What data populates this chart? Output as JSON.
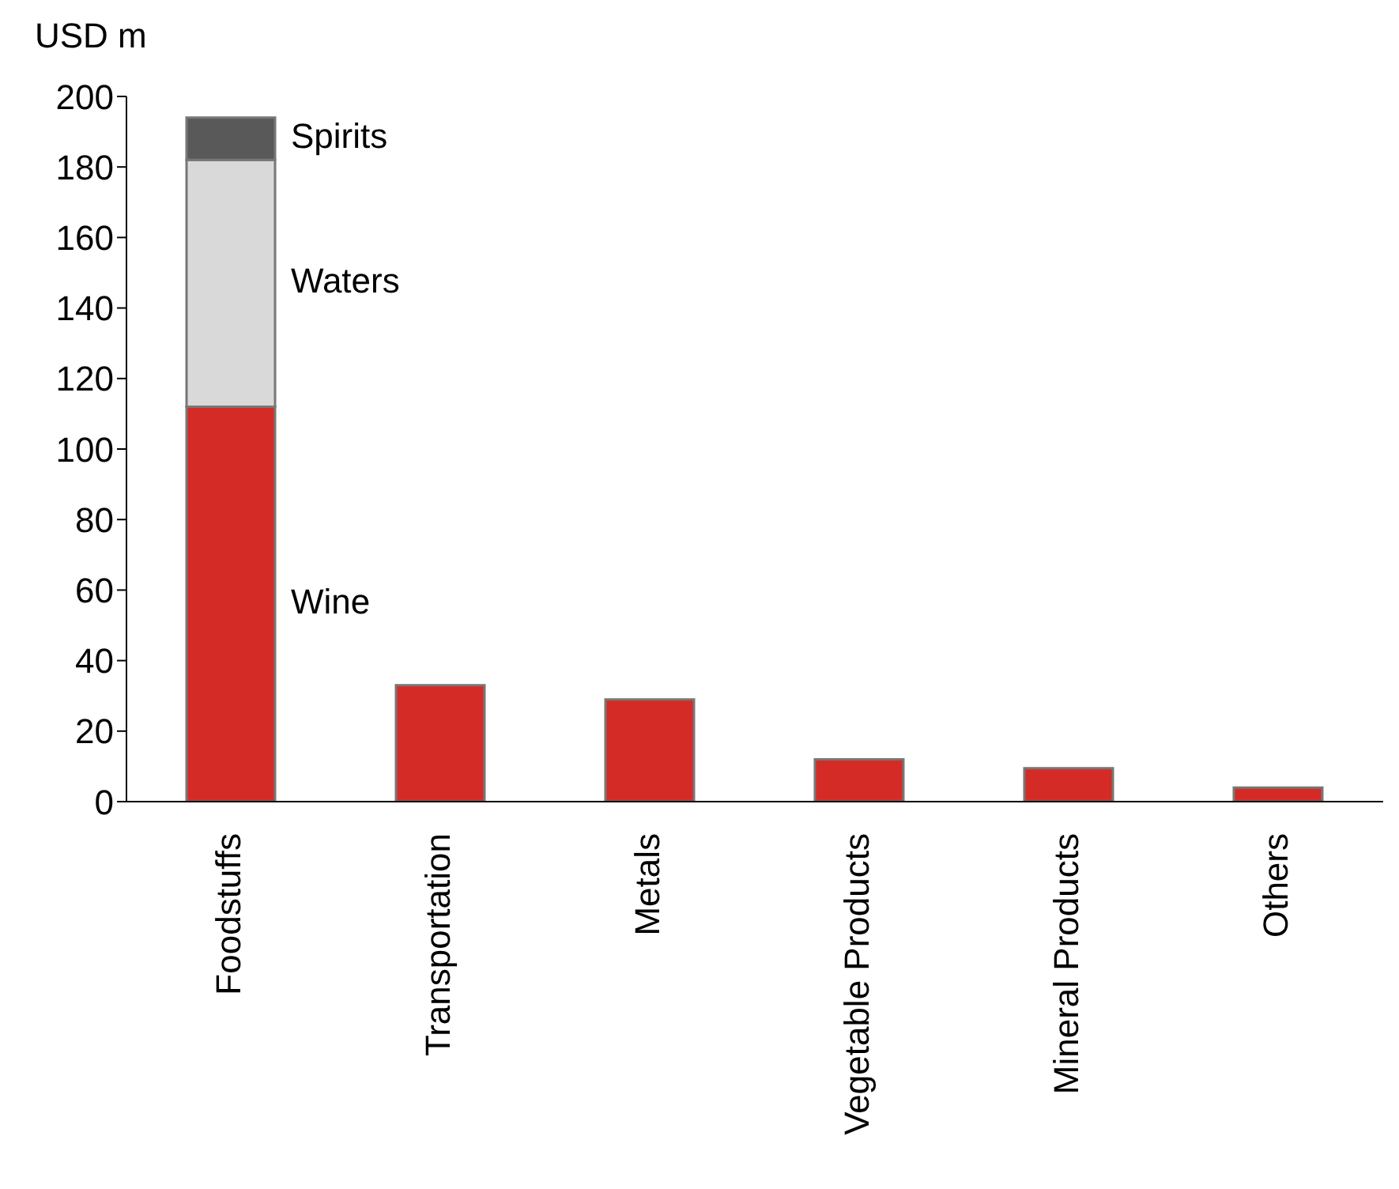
{
  "chart_data": {
    "type": "bar",
    "ylabel": "USD m",
    "stacked": true,
    "categories": [
      "Foodstuffs",
      "Transportation",
      "Metals",
      "Vegetable Products",
      "Mineral Products",
      "Others"
    ],
    "series": [
      {
        "name": "Wine",
        "color": "#d52b26",
        "values": [
          112,
          33,
          29,
          12,
          9.5,
          4
        ]
      },
      {
        "name": "Waters",
        "color": "#d9d9d9",
        "values": [
          70,
          null,
          null,
          null,
          null,
          null
        ]
      },
      {
        "name": "Spirits",
        "color": "#595959",
        "values": [
          12,
          null,
          null,
          null,
          null,
          null
        ]
      }
    ],
    "ylim": [
      0,
      200
    ],
    "yticks": [
      0,
      20,
      40,
      60,
      80,
      100,
      120,
      140,
      160,
      180,
      200
    ],
    "grid": false,
    "legend": false
  }
}
